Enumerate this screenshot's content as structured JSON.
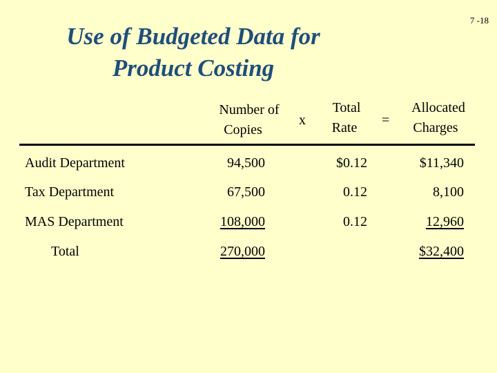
{
  "slide_number": "7 -18",
  "title": {
    "line1": "Use of Budgeted Data for",
    "line2": "Product Costing"
  },
  "headers": {
    "copies": [
      "Number of",
      "Copies"
    ],
    "times": "x",
    "rate": [
      "Total",
      "Rate"
    ],
    "equals": "=",
    "charges": [
      "Allocated",
      "Charges"
    ]
  },
  "rows": [
    {
      "label": "Audit Department",
      "copies": "94,500",
      "rate": "$0.12",
      "charges": "$11,340"
    },
    {
      "label": "Tax Department",
      "copies": "67,500",
      "rate": "0.12",
      "charges": "8,100"
    },
    {
      "label": "MAS Department",
      "copies": "108,000",
      "rate": "0.12",
      "charges": "12,960"
    }
  ],
  "total": {
    "label": "Total",
    "copies": "270,000",
    "charges": "$32,400"
  }
}
